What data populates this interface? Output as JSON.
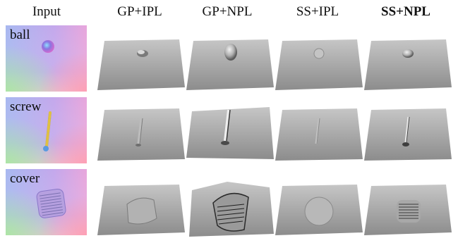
{
  "figure": {
    "input_header": "Input",
    "method_headers": [
      {
        "label": "GP+IPL",
        "bold": false
      },
      {
        "label": "GP+NPL",
        "bold": false
      },
      {
        "label": "SS+IPL",
        "bold": false
      },
      {
        "label": "SS+NPL",
        "bold": true
      }
    ],
    "rows": [
      {
        "label": "ball"
      },
      {
        "label": "screw"
      },
      {
        "label": "cover"
      }
    ]
  },
  "colors": {
    "normal_map_base": "#b9a6e8",
    "surface_gray": "#9c9c9c",
    "surface_light": "#b4b4b4"
  }
}
